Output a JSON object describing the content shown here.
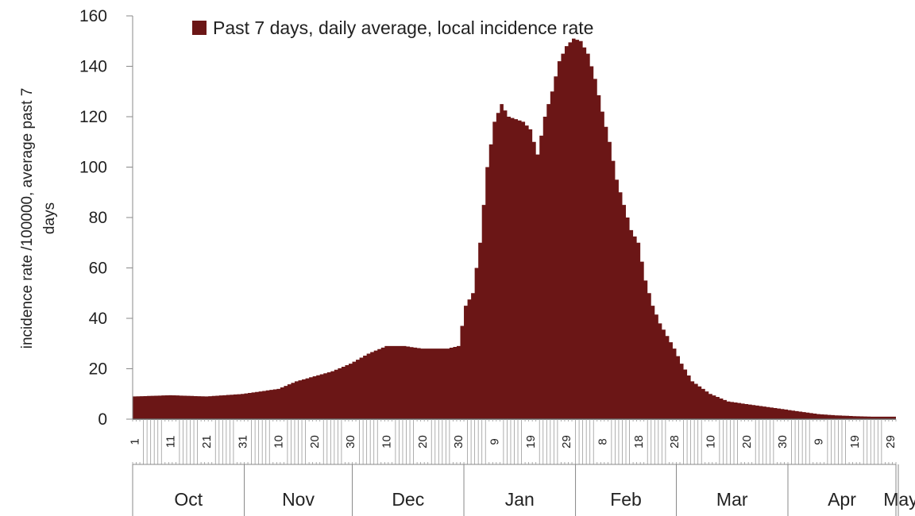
{
  "chart_data": {
    "type": "area",
    "title": "",
    "legend": {
      "label": "Past 7 days, daily average, local incidence rate",
      "position": "top"
    },
    "ylabel": "incidence rate /100000, average past 7 days",
    "ylim": [
      0,
      160
    ],
    "yticks": [
      0,
      20,
      40,
      60,
      80,
      100,
      120,
      140,
      160
    ],
    "grid": false,
    "color": "#6b1616",
    "months": [
      "Oct",
      "Nov",
      "Dec",
      "Jan",
      "Feb",
      "Mar",
      "Apr",
      "May"
    ],
    "day_ticks": [
      "1",
      "11",
      "21",
      "31",
      "10",
      "20",
      "30",
      "10",
      "20",
      "30",
      "9",
      "19",
      "29",
      "8",
      "18",
      "28",
      "10",
      "20",
      "30",
      "9",
      "19",
      "29"
    ],
    "date_range": [
      "2020-10-01",
      "2021-05-01"
    ],
    "series": [
      {
        "x": [
          "2020-10-01",
          "2020-10-11",
          "2020-10-21",
          "2020-10-31",
          "2020-11-05",
          "2020-11-10",
          "2020-11-15",
          "2020-11-20",
          "2020-11-25",
          "2020-11-30",
          "2020-12-05",
          "2020-12-10",
          "2020-12-15",
          "2020-12-20",
          "2020-12-25",
          "2020-12-27",
          "2020-12-30",
          "2021-01-01",
          "2021-01-03",
          "2021-01-05",
          "2021-01-07",
          "2021-01-09",
          "2021-01-11",
          "2021-01-13",
          "2021-01-15",
          "2021-01-17",
          "2021-01-19",
          "2021-01-21",
          "2021-01-23",
          "2021-01-25",
          "2021-01-27",
          "2021-01-29",
          "2021-01-31",
          "2021-02-02",
          "2021-02-04",
          "2021-02-06",
          "2021-02-08",
          "2021-02-10",
          "2021-02-12",
          "2021-02-14",
          "2021-02-16",
          "2021-02-18",
          "2021-02-20",
          "2021-02-22",
          "2021-02-24",
          "2021-02-26",
          "2021-02-28",
          "2021-03-02",
          "2021-03-05",
          "2021-03-10",
          "2021-03-15",
          "2021-03-20",
          "2021-03-25",
          "2021-03-30",
          "2021-04-04",
          "2021-04-09",
          "2021-04-14",
          "2021-04-19",
          "2021-04-24",
          "2021-04-29",
          "2021-05-01"
        ],
        "y": [
          9,
          9.5,
          9,
          10,
          11,
          12,
          15,
          17,
          19,
          22,
          26,
          29,
          29,
          28,
          28,
          28,
          29,
          45,
          50,
          70,
          100,
          118,
          125,
          120,
          119,
          118,
          115,
          105,
          120,
          130,
          142,
          148,
          151,
          150,
          145,
          135,
          122,
          110,
          95,
          85,
          75,
          70,
          55,
          45,
          38,
          33,
          28,
          22,
          15,
          10,
          7,
          6,
          5,
          4,
          3,
          2,
          1.5,
          1.2,
          1,
          1,
          1
        ]
      }
    ]
  }
}
